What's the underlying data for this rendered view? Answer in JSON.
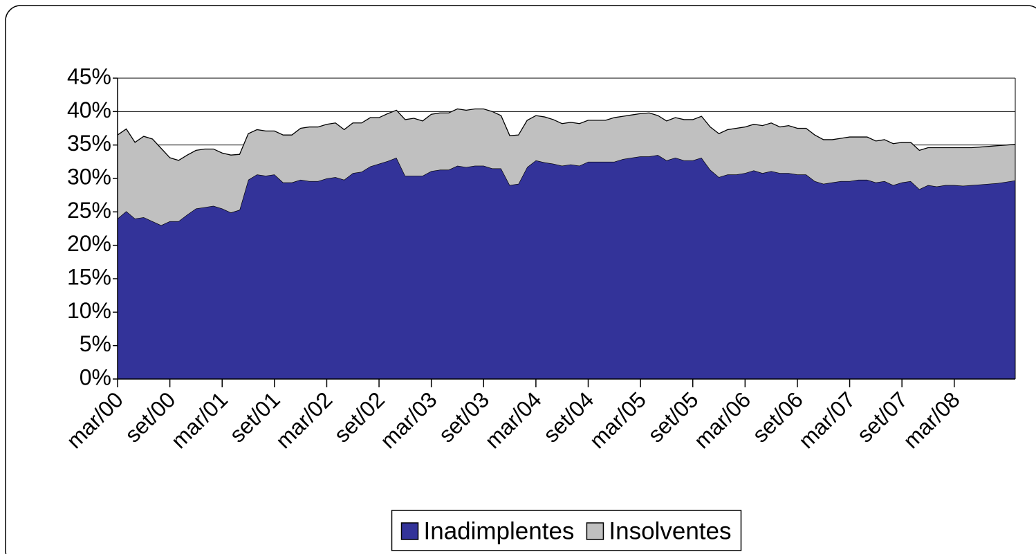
{
  "chart_data": {
    "type": "stacked-area",
    "categories": [
      "mar/00",
      null,
      null,
      null,
      null,
      null,
      "set/00",
      null,
      null,
      null,
      null,
      null,
      "mar/01",
      null,
      null,
      null,
      null,
      null,
      "set/01",
      null,
      null,
      null,
      null,
      null,
      "mar/02",
      null,
      null,
      null,
      null,
      null,
      "set/02",
      null,
      null,
      null,
      null,
      null,
      "mar/03",
      null,
      null,
      null,
      null,
      null,
      "set/03",
      null,
      null,
      null,
      null,
      null,
      "mar/04",
      null,
      null,
      null,
      null,
      null,
      "set/04",
      null,
      null,
      null,
      null,
      null,
      "mar/05",
      null,
      null,
      null,
      null,
      null,
      "set/05",
      null,
      null,
      null,
      null,
      null,
      "mar/06",
      null,
      null,
      null,
      null,
      null,
      "set/06",
      null,
      null,
      null,
      null,
      null,
      "mar/07",
      null,
      null,
      null,
      null,
      null,
      "set/07",
      null,
      null,
      null,
      null,
      null,
      "mar/08",
      null,
      null,
      null,
      null,
      null,
      null,
      null
    ],
    "series": [
      {
        "name": "Inadimplentes",
        "color": "#333399",
        "values": [
          24.0,
          25.1,
          24.0,
          24.2,
          23.6,
          23.0,
          23.6,
          23.6,
          24.6,
          25.5,
          25.7,
          25.9,
          25.5,
          24.9,
          25.3,
          29.8,
          30.6,
          30.4,
          30.6,
          29.4,
          29.4,
          29.8,
          29.6,
          29.6,
          30.0,
          30.2,
          29.8,
          30.8,
          31.0,
          31.8,
          32.2,
          32.6,
          33.1,
          30.4,
          30.4,
          30.4,
          31.1,
          31.3,
          31.3,
          31.9,
          31.7,
          31.9,
          31.9,
          31.5,
          31.5,
          29.0,
          29.2,
          31.7,
          32.7,
          32.4,
          32.2,
          31.9,
          32.1,
          31.9,
          32.5,
          32.5,
          32.5,
          32.5,
          32.9,
          33.1,
          33.3,
          33.3,
          33.5,
          32.7,
          33.1,
          32.7,
          32.7,
          33.1,
          31.3,
          30.2,
          30.6,
          30.6,
          30.8,
          31.2,
          30.8,
          31.1,
          30.8,
          30.8,
          30.6,
          30.6,
          29.6,
          29.2,
          29.4,
          29.6,
          29.6,
          29.8,
          29.8,
          29.4,
          29.6,
          29.0,
          29.4,
          29.6,
          28.4,
          29.0,
          28.8,
          29.0,
          29.0,
          28.9,
          29.0,
          29.1,
          29.2,
          29.3,
          29.5,
          29.7
        ]
      },
      {
        "name": "Insolventes",
        "color": "#c0c0c0",
        "values": [
          12.5,
          12.3,
          11.4,
          12.1,
          12.3,
          11.5,
          9.5,
          9.1,
          8.9,
          8.7,
          8.7,
          8.5,
          8.3,
          8.6,
          8.3,
          6.9,
          6.7,
          6.7,
          6.5,
          7.1,
          7.1,
          7.7,
          8.1,
          8.1,
          8.1,
          8.1,
          7.5,
          7.5,
          7.3,
          7.3,
          6.9,
          7.1,
          7.1,
          8.4,
          8.6,
          8.2,
          8.5,
          8.5,
          8.5,
          8.5,
          8.5,
          8.5,
          8.5,
          8.5,
          7.9,
          7.4,
          7.3,
          7.0,
          6.7,
          6.8,
          6.6,
          6.3,
          6.3,
          6.3,
          6.2,
          6.2,
          6.2,
          6.6,
          6.4,
          6.4,
          6.4,
          6.5,
          5.9,
          5.9,
          6.0,
          6.1,
          6.1,
          6.2,
          6.4,
          6.5,
          6.7,
          6.9,
          6.9,
          6.9,
          7.1,
          7.2,
          6.9,
          7.1,
          6.9,
          6.9,
          6.9,
          6.6,
          6.4,
          6.4,
          6.6,
          6.4,
          6.4,
          6.2,
          6.2,
          6.2,
          6.0,
          5.8,
          5.8,
          5.6,
          5.8,
          5.6,
          5.6,
          5.7,
          5.6,
          5.6,
          5.6,
          5.6,
          5.5,
          5.4
        ]
      }
    ],
    "ylim": [
      0,
      45
    ],
    "yticks": [
      {
        "value": 0,
        "label": "0%"
      },
      {
        "value": 5,
        "label": "5%"
      },
      {
        "value": 10,
        "label": "10%"
      },
      {
        "value": 15,
        "label": "15%"
      },
      {
        "value": 20,
        "label": "20%"
      },
      {
        "value": 25,
        "label": "25%"
      },
      {
        "value": 30,
        "label": "30%"
      },
      {
        "value": 35,
        "label": "35%"
      },
      {
        "value": 40,
        "label": "40%"
      },
      {
        "value": 45,
        "label": "45%"
      }
    ],
    "grid": true,
    "legend": "bottom"
  }
}
